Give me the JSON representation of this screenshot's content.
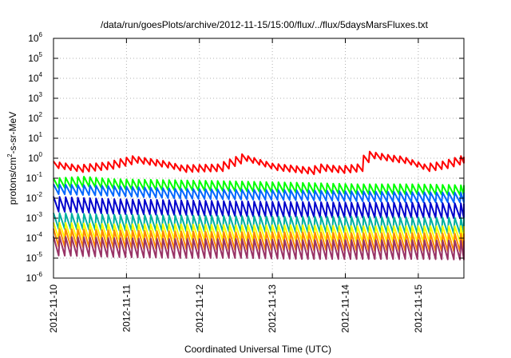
{
  "chart_data": {
    "type": "line",
    "title": "/data/run/goesPlots/archive/2012-11-15/15:00/flux/../flux/5daysMarsFluxes.txt",
    "xlabel": "Coordinated Universal Time (UTC)",
    "ylabel": {
      "base": "protons/cm",
      "sup": "2",
      "rest": "-s-sr-MeV"
    },
    "x_range": [
      "2012-11-10 00:00",
      "2012-11-15 15:00"
    ],
    "x_ticks": [
      "2012-11-10",
      "2012-11-11",
      "2012-11-12",
      "2012-11-13",
      "2012-11-14",
      "2012-11-15"
    ],
    "y_scale": "log",
    "ylim": [
      1e-06,
      1000000.0
    ],
    "y_ticks": [
      {
        "base": "10",
        "exp": "-6",
        "value": -6
      },
      {
        "base": "10",
        "exp": "-5",
        "value": -5
      },
      {
        "base": "10",
        "exp": "-4",
        "value": -4
      },
      {
        "base": "10",
        "exp": "-3",
        "value": -3
      },
      {
        "base": "10",
        "exp": "-2",
        "value": -2
      },
      {
        "base": "10",
        "exp": "-1",
        "value": -1
      },
      {
        "base": "10",
        "exp": "0",
        "value": 0
      },
      {
        "base": "10",
        "exp": "1",
        "value": 1
      },
      {
        "base": "10",
        "exp": "2",
        "value": 2
      },
      {
        "base": "10",
        "exp": "3",
        "value": 3
      },
      {
        "base": "10",
        "exp": "4",
        "value": 4
      },
      {
        "base": "10",
        "exp": "5",
        "value": 5
      },
      {
        "base": "10",
        "exp": "6",
        "value": 6
      }
    ],
    "grid": true,
    "sawtooth_period_hours": 2,
    "series": [
      {
        "color": "#ff0000",
        "top": [
          [
            0,
            0.7
          ],
          [
            8,
            0.45
          ],
          [
            18,
            0.65
          ],
          [
            26,
            1.3
          ],
          [
            36,
            0.75
          ],
          [
            42,
            0.45
          ],
          [
            54,
            0.5
          ],
          [
            62,
            1.6
          ],
          [
            72,
            0.55
          ],
          [
            84,
            0.35
          ],
          [
            88,
            0.5
          ],
          [
            94,
            0.4
          ],
          [
            100,
            0.5
          ],
          [
            103,
            2.3
          ],
          [
            110,
            1.5
          ],
          [
            115,
            1.2
          ],
          [
            122,
            0.5
          ],
          [
            128,
            0.7
          ],
          [
            134,
            1.3
          ],
          [
            142,
            0.6
          ],
          [
            150,
            1.0
          ],
          [
            158,
            0.45
          ],
          [
            166,
            0.5
          ],
          [
            174,
            0.28
          ],
          [
            186,
            0.22
          ],
          [
            203,
            0.18
          ]
        ],
        "amp": 0.35
      },
      {
        "color": "#00ff00",
        "top": [
          [
            0,
            0.1
          ],
          [
            10,
            0.12
          ],
          [
            20,
            0.09
          ],
          [
            40,
            0.08
          ],
          [
            60,
            0.07
          ],
          [
            80,
            0.06
          ],
          [
            100,
            0.05
          ],
          [
            120,
            0.05
          ],
          [
            150,
            0.04
          ],
          [
            175,
            0.035
          ],
          [
            203,
            0.018
          ]
        ],
        "amp": 0.5
      },
      {
        "color": "#0066ff",
        "top": [
          [
            0,
            0.05
          ],
          [
            20,
            0.04
          ],
          [
            40,
            0.03
          ],
          [
            60,
            0.027
          ],
          [
            80,
            0.025
          ],
          [
            100,
            0.022
          ],
          [
            120,
            0.02
          ],
          [
            150,
            0.018
          ],
          [
            175,
            0.014
          ],
          [
            203,
            0.008
          ]
        ],
        "amp": 0.5
      },
      {
        "color": "#0000cc",
        "top": [
          [
            0,
            0.012
          ],
          [
            20,
            0.009
          ],
          [
            40,
            0.008
          ],
          [
            60,
            0.007
          ],
          [
            80,
            0.0065
          ],
          [
            100,
            0.006
          ],
          [
            120,
            0.006
          ],
          [
            150,
            0.005
          ],
          [
            175,
            0.004
          ],
          [
            203,
            0.003
          ]
        ],
        "amp": 0.75
      },
      {
        "color": "#00b0a0",
        "top": [
          [
            0,
            0.0018
          ],
          [
            20,
            0.0015
          ],
          [
            40,
            0.0014
          ],
          [
            60,
            0.0013
          ],
          [
            80,
            0.0012
          ],
          [
            100,
            0.0012
          ],
          [
            120,
            0.0011
          ],
          [
            150,
            0.001
          ],
          [
            175,
            0.0009
          ],
          [
            203,
            0.0007
          ]
        ],
        "amp": 0.8
      },
      {
        "color": "#ffff00",
        "top": [
          [
            0,
            0.0006
          ],
          [
            20,
            0.0005
          ],
          [
            40,
            0.0005
          ],
          [
            60,
            0.00045
          ],
          [
            80,
            0.00045
          ],
          [
            100,
            0.0004
          ],
          [
            120,
            0.0004
          ],
          [
            150,
            0.0004
          ],
          [
            175,
            0.00035
          ],
          [
            203,
            0.0003
          ]
        ],
        "amp": 0.8
      },
      {
        "color": "#ff8800",
        "top": [
          [
            0,
            0.0003
          ],
          [
            20,
            0.00025
          ],
          [
            40,
            0.00022
          ],
          [
            60,
            0.0002
          ],
          [
            80,
            0.0002
          ],
          [
            100,
            0.00018
          ],
          [
            120,
            0.00018
          ],
          [
            150,
            0.00016
          ],
          [
            175,
            0.00015
          ],
          [
            203,
            0.00012
          ]
        ],
        "amp": 0.9
      },
      {
        "color": "#993366",
        "top": [
          [
            0,
            0.00012
          ],
          [
            20,
            0.0001
          ],
          [
            40,
            9e-05
          ],
          [
            60,
            9e-05
          ],
          [
            80,
            8e-05
          ],
          [
            100,
            8e-05
          ],
          [
            120,
            8e-05
          ],
          [
            150,
            7e-05
          ],
          [
            175,
            6e-05
          ],
          [
            203,
            5e-05
          ]
        ],
        "amp": 0.95
      }
    ]
  }
}
